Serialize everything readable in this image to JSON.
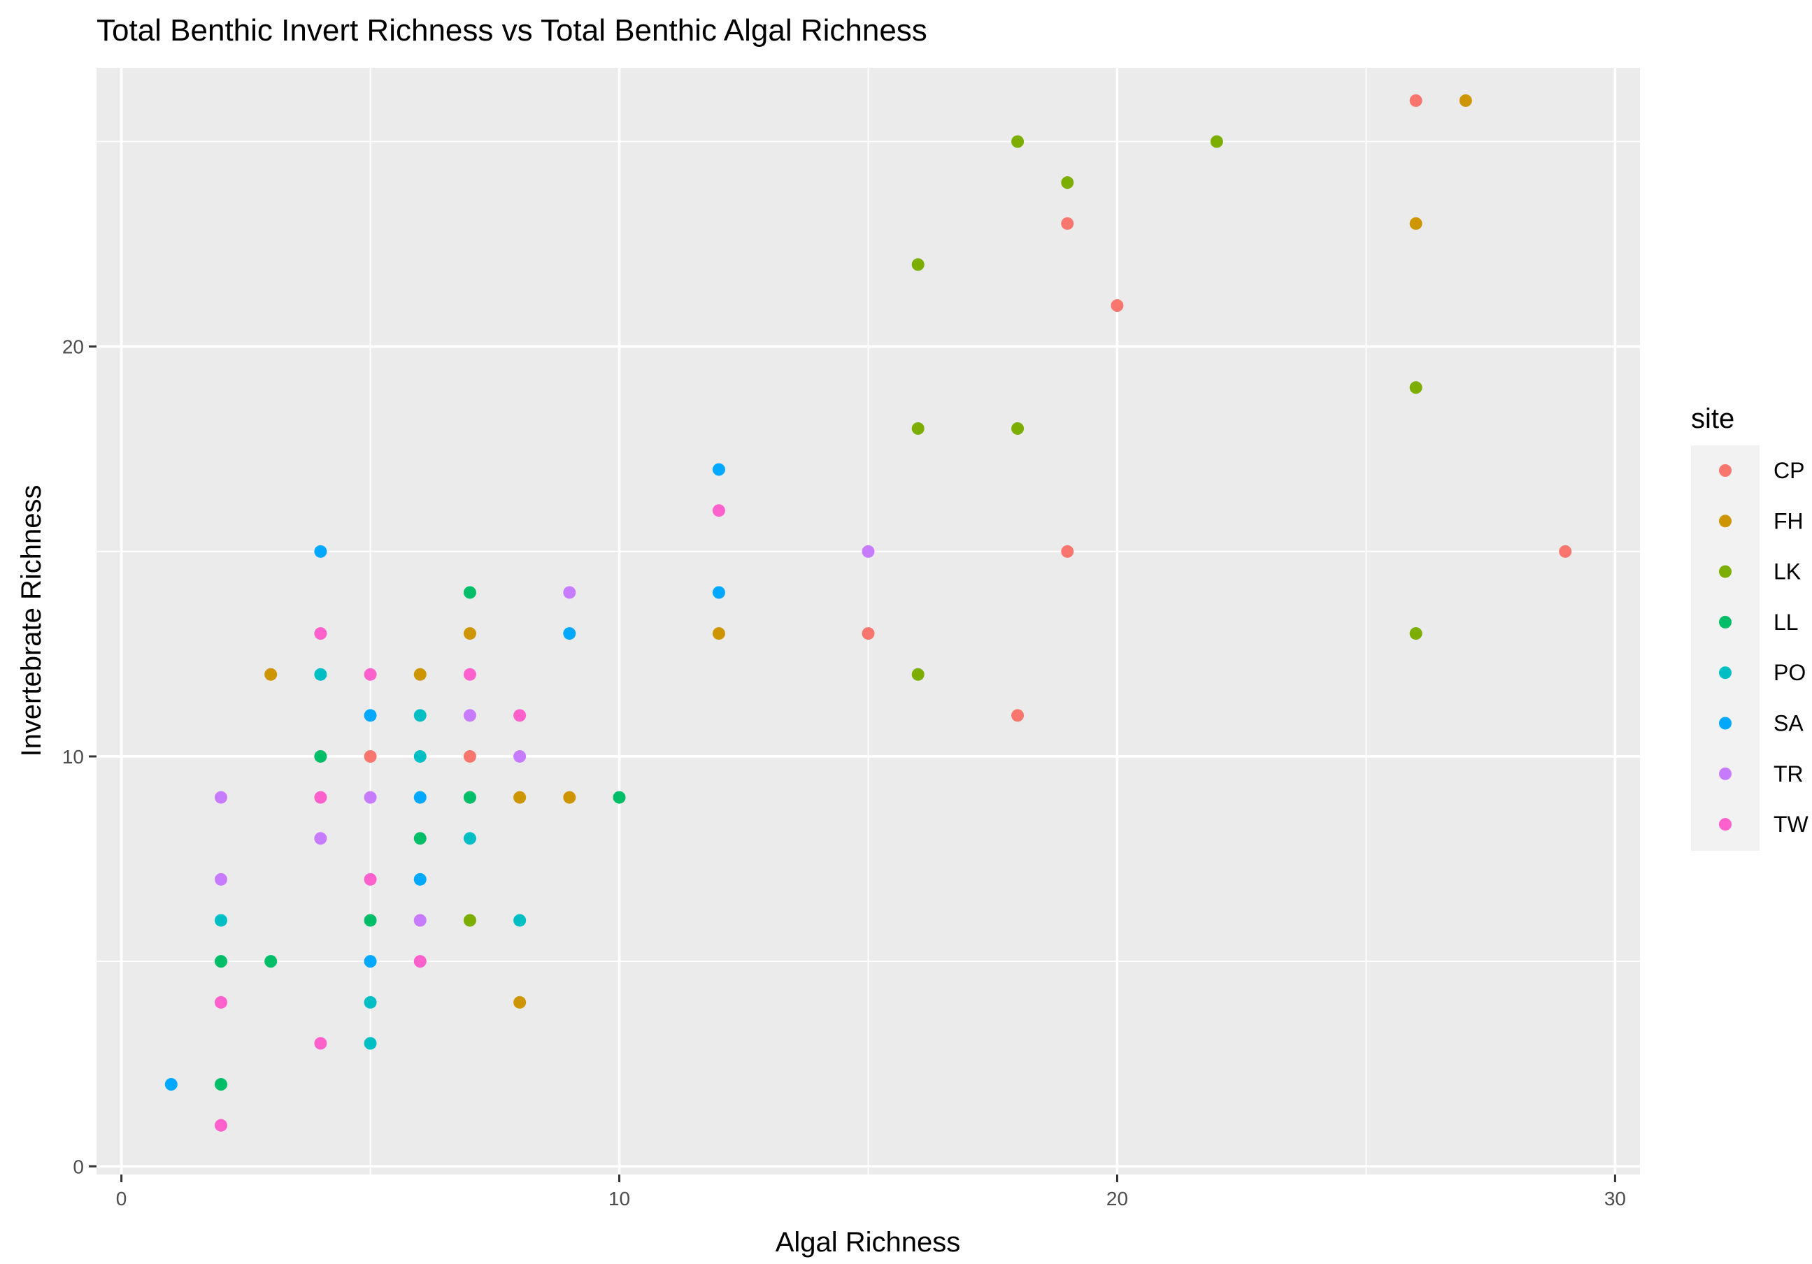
{
  "chart_data": {
    "type": "scatter",
    "title": "Total Benthic Invert Richness vs Total Benthic Algal Richness",
    "xlabel": "Algal Richness",
    "ylabel": "Invertebrate Richness",
    "xlim": [
      -0.5,
      30.5
    ],
    "ylim": [
      -0.2,
      26.8
    ],
    "x_ticks": [
      0,
      10,
      20,
      30
    ],
    "x_tick_labels": [
      "0",
      "10",
      "20",
      "30"
    ],
    "y_ticks": [
      0,
      10,
      20
    ],
    "y_tick_labels": [
      "0",
      "10",
      "20"
    ],
    "grid": true,
    "legend": {
      "title": "site",
      "position": "right"
    },
    "series": [
      {
        "name": "CP",
        "color": "#F8766D",
        "points": [
          [
            26,
            26
          ],
          [
            19,
            23
          ],
          [
            20,
            21
          ],
          [
            19,
            15
          ],
          [
            29,
            15
          ],
          [
            15,
            13
          ],
          [
            18,
            11
          ],
          [
            5,
            10
          ],
          [
            7,
            10
          ]
        ]
      },
      {
        "name": "FH",
        "color": "#CD9600",
        "points": [
          [
            27,
            26
          ],
          [
            26,
            23
          ],
          [
            12,
            13
          ],
          [
            7,
            13
          ],
          [
            3,
            12
          ],
          [
            6,
            12
          ],
          [
            8,
            9
          ],
          [
            9,
            9
          ],
          [
            8,
            4
          ]
        ]
      },
      {
        "name": "LK",
        "color": "#7CAE00",
        "points": [
          [
            18,
            25
          ],
          [
            22,
            25
          ],
          [
            19,
            24
          ],
          [
            16,
            22
          ],
          [
            26,
            19
          ],
          [
            16,
            18
          ],
          [
            18,
            18
          ],
          [
            26,
            13
          ],
          [
            16,
            12
          ],
          [
            7,
            6
          ]
        ]
      },
      {
        "name": "LL",
        "color": "#00BE67",
        "points": [
          [
            7,
            14
          ],
          [
            4,
            10
          ],
          [
            7,
            9
          ],
          [
            10,
            9
          ],
          [
            6,
            8
          ],
          [
            5,
            6
          ],
          [
            2,
            5
          ],
          [
            3,
            5
          ],
          [
            2,
            2
          ]
        ]
      },
      {
        "name": "PO",
        "color": "#00BFC4",
        "points": [
          [
            4,
            12
          ],
          [
            6,
            11
          ],
          [
            6,
            10
          ],
          [
            7,
            8
          ],
          [
            2,
            6
          ],
          [
            8,
            6
          ],
          [
            5,
            4
          ],
          [
            5,
            3
          ]
        ]
      },
      {
        "name": "SA",
        "color": "#00A9FF",
        "points": [
          [
            12,
            17
          ],
          [
            4,
            15
          ],
          [
            12,
            14
          ],
          [
            9,
            13
          ],
          [
            5,
            11
          ],
          [
            6,
            9
          ],
          [
            6,
            7
          ],
          [
            5,
            5
          ],
          [
            1,
            2
          ]
        ]
      },
      {
        "name": "TR",
        "color": "#C77CFF",
        "points": [
          [
            15,
            15
          ],
          [
            9,
            14
          ],
          [
            7,
            11
          ],
          [
            8,
            10
          ],
          [
            2,
            9
          ],
          [
            5,
            9
          ],
          [
            4,
            8
          ],
          [
            2,
            7
          ],
          [
            6,
            6
          ]
        ]
      },
      {
        "name": "TW",
        "color": "#FF61CC",
        "points": [
          [
            12,
            16
          ],
          [
            4,
            13
          ],
          [
            5,
            12
          ],
          [
            7,
            12
          ],
          [
            8,
            11
          ],
          [
            4,
            9
          ],
          [
            5,
            7
          ],
          [
            6,
            5
          ],
          [
            2,
            4
          ],
          [
            4,
            3
          ],
          [
            2,
            1
          ]
        ]
      }
    ]
  }
}
